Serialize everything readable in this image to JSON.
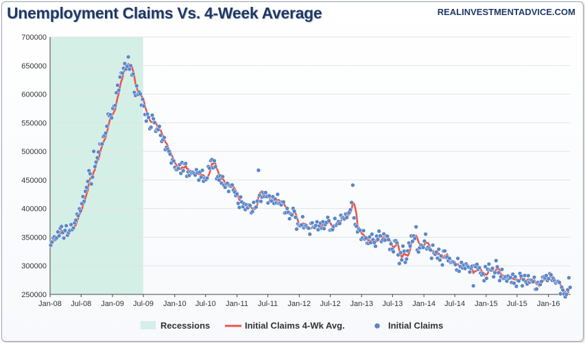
{
  "title": "Unemployment Claims Vs. 4-Week Average",
  "source": "REALINVESTMENTADVICE.COM",
  "colors": {
    "recession": "#d4efe6",
    "average": "#e8574a",
    "claims": "#5b86c8",
    "grid": "#e3e3e3",
    "axis": "#444444"
  },
  "chart_data": {
    "type": "scatter",
    "title": "Unemployment Claims Vs. 4-Week Average",
    "xlabel": "",
    "ylabel": "",
    "x_range": [
      "2008-01-01",
      "2016-05-10"
    ],
    "ylim": [
      250000,
      700000
    ],
    "y_ticks": [
      250000,
      300000,
      350000,
      400000,
      450000,
      500000,
      550000,
      600000,
      650000,
      700000
    ],
    "x_ticks": [
      "Jan-08",
      "Jul-08",
      "Jan-09",
      "Jul-09",
      "Jan-10",
      "Jul-10",
      "Jan-11",
      "Jul-11",
      "Jan-12",
      "Jul-12",
      "Jan-13",
      "Jul-13",
      "Jan-14",
      "Jul-14",
      "Jan-15",
      "Jul-15",
      "Jan-16"
    ],
    "grid": true,
    "legend_position": "bottom",
    "legend": [
      "Recessions",
      "Initial Claims 4-Wk Avg.",
      "Initial Claims"
    ],
    "recessions": [
      {
        "start": "2008-01-01",
        "end": "2009-06-30"
      }
    ],
    "series": [
      {
        "name": "Initial Claims",
        "kind": "scatter"
      },
      {
        "name": "Initial Claims 4-Wk Avg.",
        "kind": "line"
      }
    ],
    "anchors": [
      {
        "date": "2008-01-05",
        "claims": 340000
      },
      {
        "date": "2008-03-01",
        "claims": 355000
      },
      {
        "date": "2008-05-01",
        "claims": 365000
      },
      {
        "date": "2008-06-15",
        "claims": 385000
      },
      {
        "date": "2008-08-01",
        "claims": 440000
      },
      {
        "date": "2008-09-15",
        "claims": 470000
      },
      {
        "date": "2008-11-01",
        "claims": 520000
      },
      {
        "date": "2008-12-15",
        "claims": 555000
      },
      {
        "date": "2009-01-20",
        "claims": 585000
      },
      {
        "date": "2009-02-20",
        "claims": 635000
      },
      {
        "date": "2009-03-25",
        "claims": 655000
      },
      {
        "date": "2009-04-25",
        "claims": 630000
      },
      {
        "date": "2009-06-01",
        "claims": 605000
      },
      {
        "date": "2009-07-20",
        "claims": 565000
      },
      {
        "date": "2009-09-01",
        "claims": 545000
      },
      {
        "date": "2009-11-01",
        "claims": 510000
      },
      {
        "date": "2010-01-01",
        "claims": 475000
      },
      {
        "date": "2010-03-01",
        "claims": 470000
      },
      {
        "date": "2010-05-01",
        "claims": 455000
      },
      {
        "date": "2010-07-01",
        "claims": 460000
      },
      {
        "date": "2010-08-20",
        "claims": 480000
      },
      {
        "date": "2010-10-01",
        "claims": 450000
      },
      {
        "date": "2010-12-01",
        "claims": 430000
      },
      {
        "date": "2011-02-01",
        "claims": 405000
      },
      {
        "date": "2011-04-01",
        "claims": 400000
      },
      {
        "date": "2011-05-10",
        "claims": 425000
      },
      {
        "date": "2011-07-01",
        "claims": 415000
      },
      {
        "date": "2011-09-01",
        "claims": 410000
      },
      {
        "date": "2011-11-01",
        "claims": 395000
      },
      {
        "date": "2012-01-01",
        "claims": 375000
      },
      {
        "date": "2012-03-01",
        "claims": 365000
      },
      {
        "date": "2012-05-01",
        "claims": 372000
      },
      {
        "date": "2012-07-01",
        "claims": 375000
      },
      {
        "date": "2012-09-01",
        "claims": 372000
      },
      {
        "date": "2012-11-05",
        "claims": 400000
      },
      {
        "date": "2012-12-15",
        "claims": 362000
      },
      {
        "date": "2013-02-01",
        "claims": 348000
      },
      {
        "date": "2013-04-01",
        "claims": 350000
      },
      {
        "date": "2013-06-01",
        "claims": 345000
      },
      {
        "date": "2013-08-01",
        "claims": 330000
      },
      {
        "date": "2013-09-20",
        "claims": 310000
      },
      {
        "date": "2013-10-20",
        "claims": 358000
      },
      {
        "date": "2013-12-01",
        "claims": 330000
      },
      {
        "date": "2014-01-15",
        "claims": 340000
      },
      {
        "date": "2014-03-01",
        "claims": 322000
      },
      {
        "date": "2014-05-01",
        "claims": 312000
      },
      {
        "date": "2014-07-01",
        "claims": 305000
      },
      {
        "date": "2014-09-01",
        "claims": 298000
      },
      {
        "date": "2014-11-01",
        "claims": 292000
      },
      {
        "date": "2015-01-01",
        "claims": 290000
      },
      {
        "date": "2015-03-01",
        "claims": 288000
      },
      {
        "date": "2015-05-01",
        "claims": 280000
      },
      {
        "date": "2015-07-01",
        "claims": 275000
      },
      {
        "date": "2015-09-01",
        "claims": 270000
      },
      {
        "date": "2015-11-01",
        "claims": 270000
      },
      {
        "date": "2016-01-01",
        "claims": 280000
      },
      {
        "date": "2016-03-01",
        "claims": 265000
      },
      {
        "date": "2016-04-10",
        "claims": 255000
      },
      {
        "date": "2016-05-07",
        "claims": 270000
      }
    ],
    "outliers": [
      {
        "date": "2011-05-07",
        "claims": 467000
      },
      {
        "date": "2012-11-10",
        "claims": 441000
      },
      {
        "date": "2009-04-04",
        "claims": 665000
      },
      {
        "date": "2008-09-13",
        "claims": 500000
      },
      {
        "date": "2013-11-16",
        "claims": 368000
      },
      {
        "date": "2013-08-10",
        "claims": 304000
      },
      {
        "date": "2015-02-28",
        "claims": 309000
      },
      {
        "date": "2014-10-18",
        "claims": 265000
      },
      {
        "date": "2016-04-16",
        "claims": 250000
      }
    ]
  }
}
